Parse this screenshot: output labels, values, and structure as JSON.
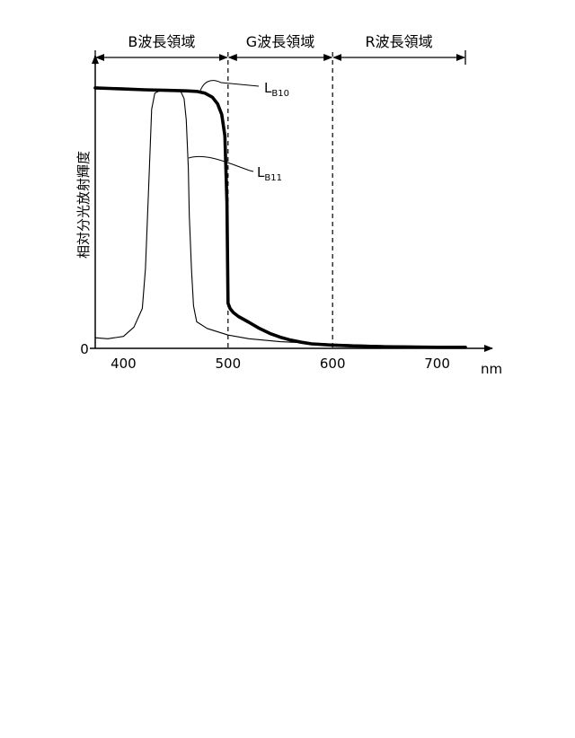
{
  "chart_data": {
    "type": "line",
    "ylabel": "相対分光放射輝度",
    "xunit": "nm",
    "y_zero_label": "0",
    "x_ticks": [
      400,
      500,
      600,
      700
    ],
    "xlim": [
      373,
      727
    ],
    "ylim": [
      0,
      1.0
    ],
    "grid": false,
    "regions": [
      {
        "label": "B波長領域",
        "x_start": 373,
        "x_end": 500
      },
      {
        "label": "G波長領域",
        "x_start": 500,
        "x_end": 600
      },
      {
        "label": "R波長領域",
        "x_start": 600,
        "x_end": 727
      }
    ],
    "boundaries": [
      500,
      600
    ],
    "series": [
      {
        "name": "LB10",
        "callout_main": "L",
        "callout_sub": "B10",
        "style": "thick",
        "x": [
          373,
          400,
          420,
          440,
          460,
          470,
          478,
          485,
          490,
          494,
          497,
          499,
          500,
          502,
          505,
          510,
          520,
          530,
          540,
          550,
          560,
          570,
          580,
          600,
          620,
          650,
          700,
          727
        ],
        "y": [
          0.98,
          0.976,
          0.973,
          0.971,
          0.969,
          0.967,
          0.96,
          0.945,
          0.92,
          0.88,
          0.8,
          0.55,
          0.17,
          0.15,
          0.135,
          0.12,
          0.098,
          0.075,
          0.056,
          0.042,
          0.031,
          0.023,
          0.017,
          0.012,
          0.009,
          0.006,
          0.004,
          0.004
        ]
      },
      {
        "name": "LB11",
        "callout_main": "L",
        "callout_sub": "B11",
        "style": "thin",
        "x": [
          373,
          385,
          400,
          410,
          418,
          421,
          424,
          427,
          430,
          435,
          440,
          450,
          455,
          458,
          460,
          462,
          463,
          465,
          467,
          470,
          480,
          500,
          520,
          550,
          600,
          650,
          700,
          727
        ],
        "y": [
          0.04,
          0.036,
          0.045,
          0.08,
          0.15,
          0.3,
          0.6,
          0.9,
          0.96,
          0.97,
          0.97,
          0.97,
          0.965,
          0.94,
          0.86,
          0.68,
          0.5,
          0.3,
          0.16,
          0.1,
          0.075,
          0.05,
          0.036,
          0.025,
          0.016,
          0.01,
          0.007,
          0.006
        ]
      }
    ]
  },
  "colors": {
    "ink": "#000000",
    "background": "#ffffff"
  }
}
